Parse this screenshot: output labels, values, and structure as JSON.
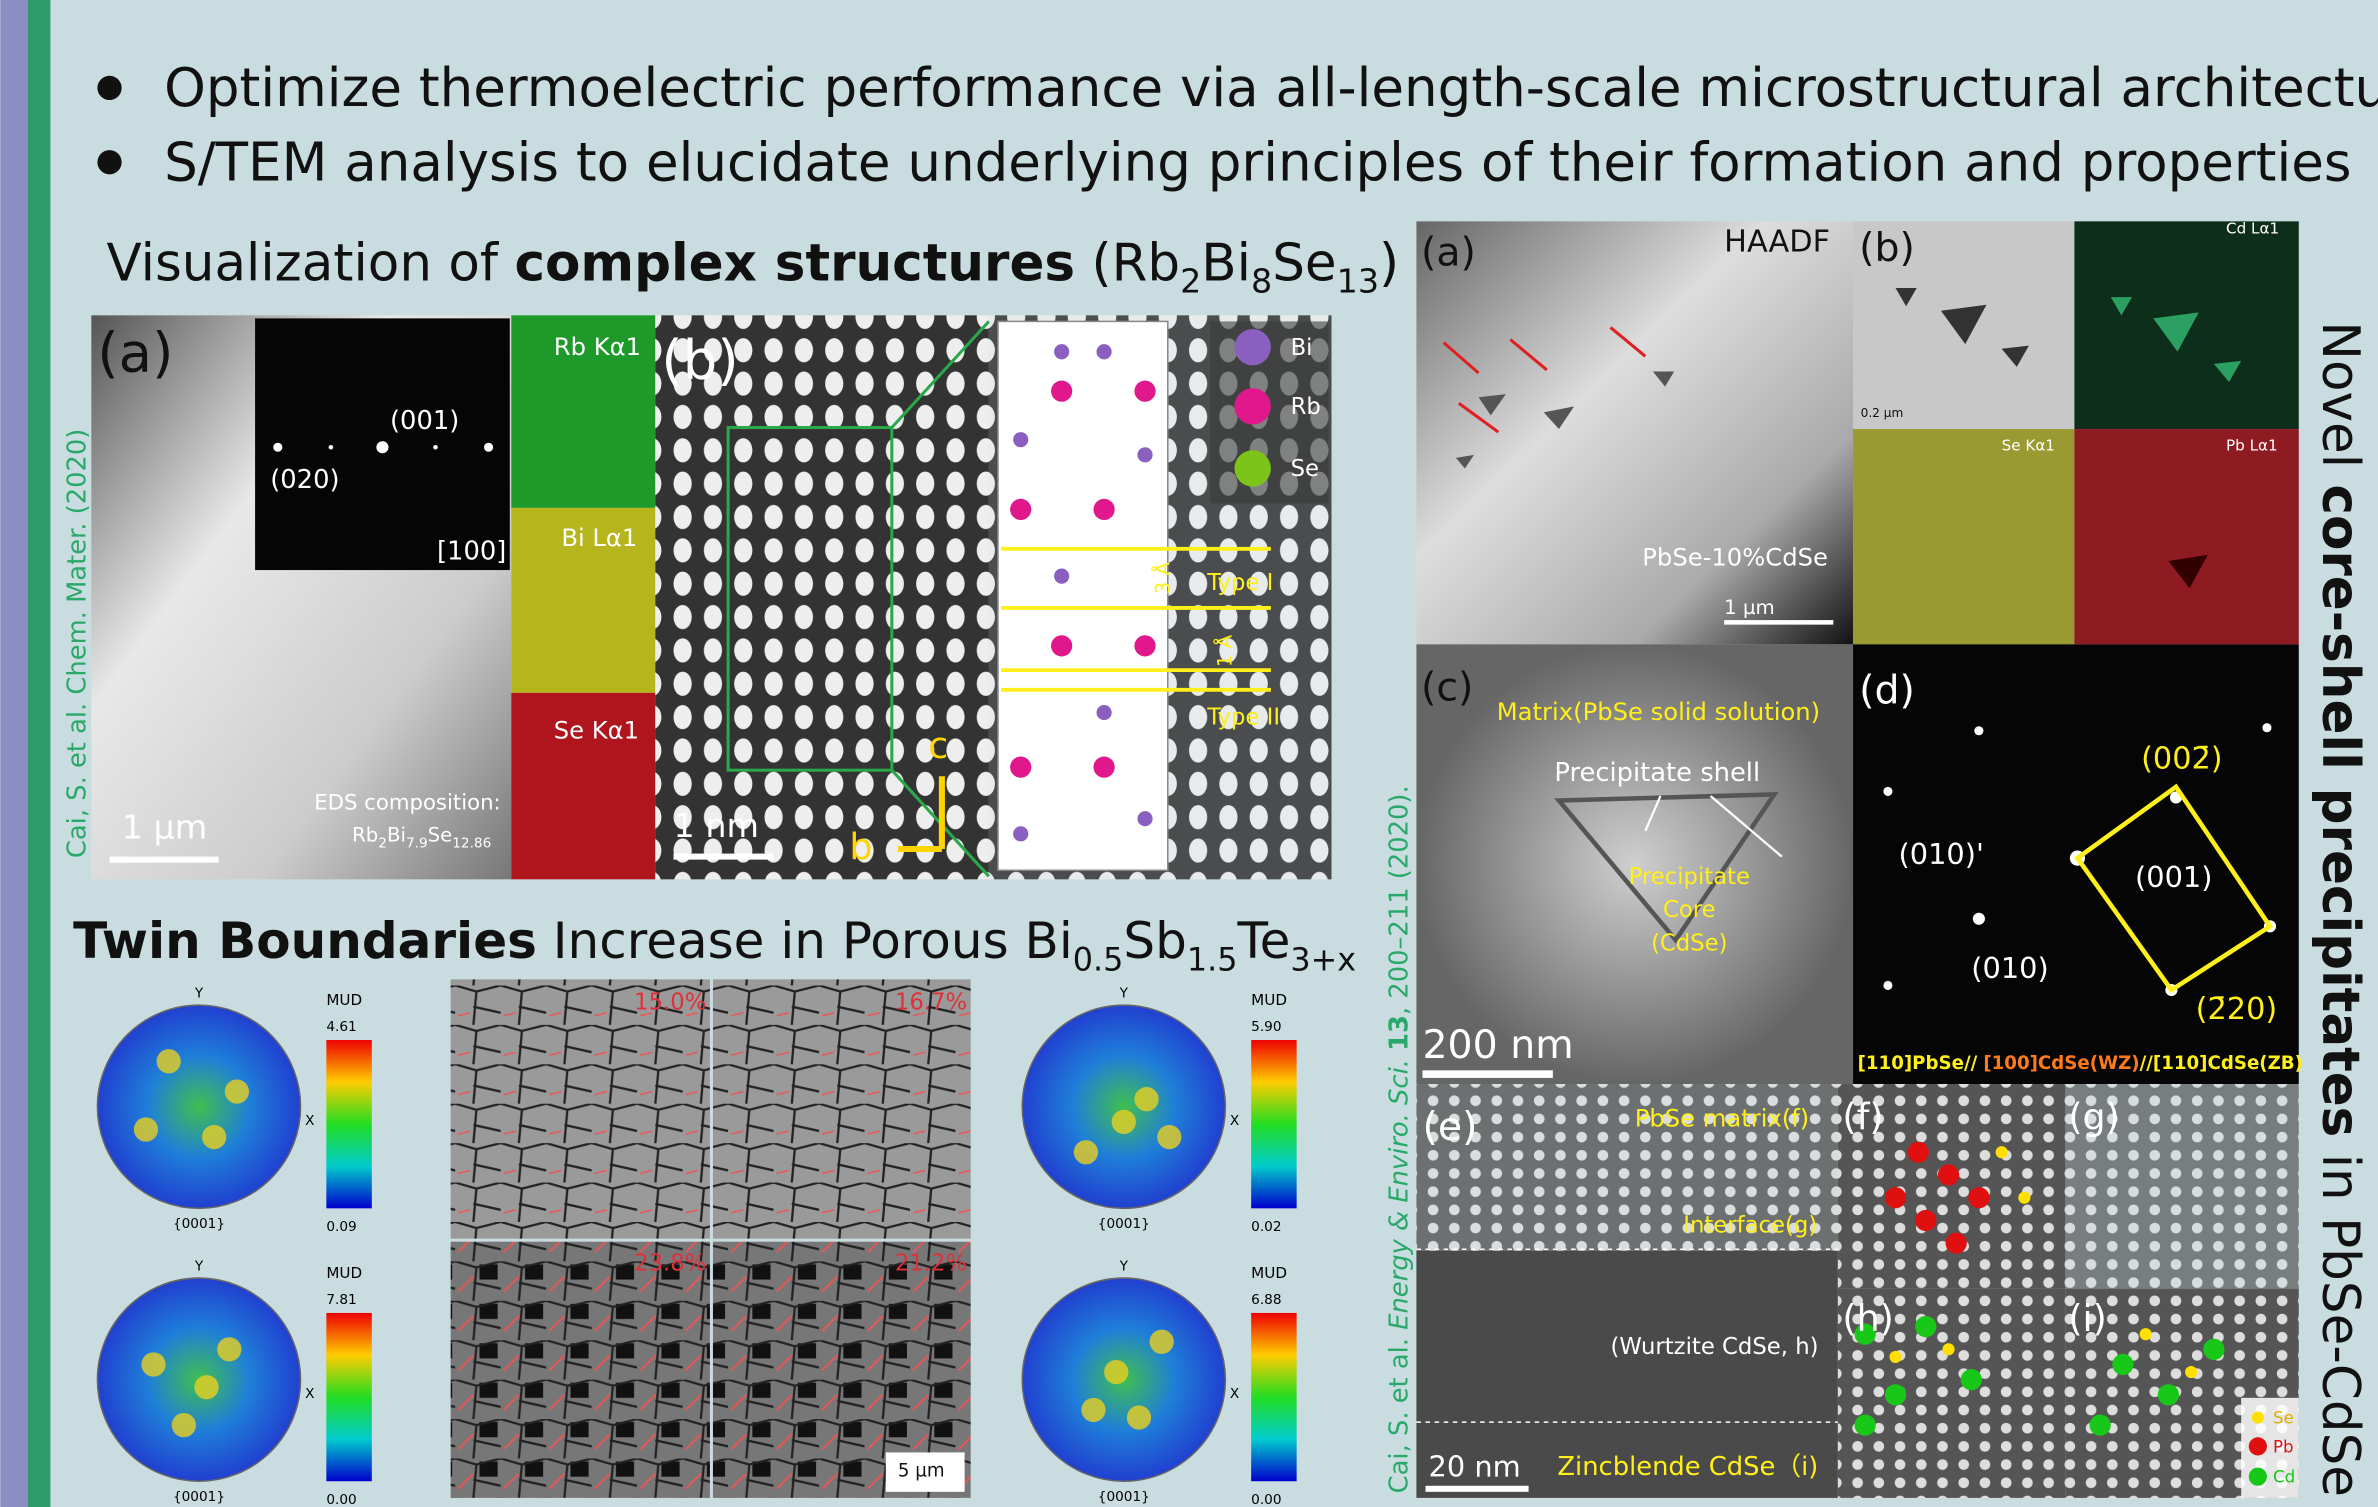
{
  "bullets": [
    "Optimize thermoelectric performance via all-length-scale microstructural architecture",
    "S/TEM analysis to elucidate underlying principles of their formation and properties"
  ],
  "left": {
    "heading": [
      "Visualization of ",
      "complex structures",
      " (Rb",
      "2",
      "Bi",
      "8",
      "Se",
      "13",
      ")"
    ],
    "citation": "Cai, S. et al. Chem. Mater. (2020)",
    "panel_a": {
      "label": "(a)",
      "scale": "1 µm",
      "diffraction": [
        "(001)",
        "(020)",
        "[100]"
      ],
      "maps": [
        "Rb Kα1",
        "Bi Lα1",
        "Se Kα1"
      ],
      "eds_title": "EDS composition:",
      "eds_formula": [
        "Rb",
        "2",
        "Bi",
        "7.9",
        "Se",
        "12.86"
      ]
    },
    "panel_b": {
      "label": "(b)",
      "scale": "1 nm",
      "axes": [
        "c",
        "b"
      ],
      "legend": [
        "Bi",
        "Rb",
        "Se"
      ],
      "types": [
        "Type I",
        "Type II"
      ],
      "spacings": [
        "3 Å",
        "1 Å"
      ]
    }
  },
  "twin": {
    "heading": [
      "Twin Boundaries",
      " Increase in Porous Bi",
      "0.5",
      "Sb",
      "1.5",
      "Te",
      "3+x"
    ],
    "axis_labels": [
      "Y",
      "X",
      "{0001}"
    ],
    "legend_title": "MUD",
    "pole_figures": [
      {
        "max": "4.61",
        "min": "0.09"
      },
      {
        "max": "7.81",
        "min": "0.00"
      },
      {
        "max": "5.90",
        "min": "0.02"
      },
      {
        "max": "6.88",
        "min": "0.00"
      }
    ],
    "fractions": [
      "15.0%",
      "16.7%",
      "23.8%",
      "21.2%"
    ],
    "scale": "5 µm"
  },
  "right": {
    "title": [
      "Novel ",
      "core-shell precipitates",
      " in PbSe-CdSe"
    ],
    "citation": [
      "Cai, S. et al. ",
      "Energy & Enviro. Sci.  ",
      "13",
      ", 200–211 (2020)."
    ],
    "panel_a": {
      "label": "(a)",
      "mode": "HAADF",
      "sample": "PbSe-10%CdSe",
      "scale": "1 µm"
    },
    "panel_b": {
      "label": "(b)",
      "scale": "0.2 µm",
      "maps": [
        "Cd Lα1",
        "Se Kα1",
        "Pb Lα1"
      ]
    },
    "panel_c": {
      "label": "(c)",
      "matrix": "Matrix(PbSe solid solution)",
      "shell": "Precipitate shell",
      "core": [
        "Precipitate",
        "Core",
        "(CdSe)"
      ],
      "scale": "200 nm"
    },
    "panel_d": {
      "label": "(d)",
      "spots": [
        "(002̄)",
        "(010)'",
        "(001)",
        "(010)",
        "(2̄20)"
      ],
      "zone": [
        "[110]PbSe//",
        "[100]CdSe(WZ)",
        "//[110]CdSe(ZB)"
      ]
    },
    "panel_e": {
      "label": "(e)",
      "regions": [
        "PbSe matrix(f)",
        "Interface(g)",
        "(Wurtzite CdSe, h)",
        "Zincblende CdSe（i)"
      ],
      "scale": "20 nm"
    },
    "insets": [
      "(f)",
      "(g)",
      "(h)",
      "(i)"
    ],
    "legend": [
      "Se",
      "Pb",
      "Cd"
    ]
  }
}
